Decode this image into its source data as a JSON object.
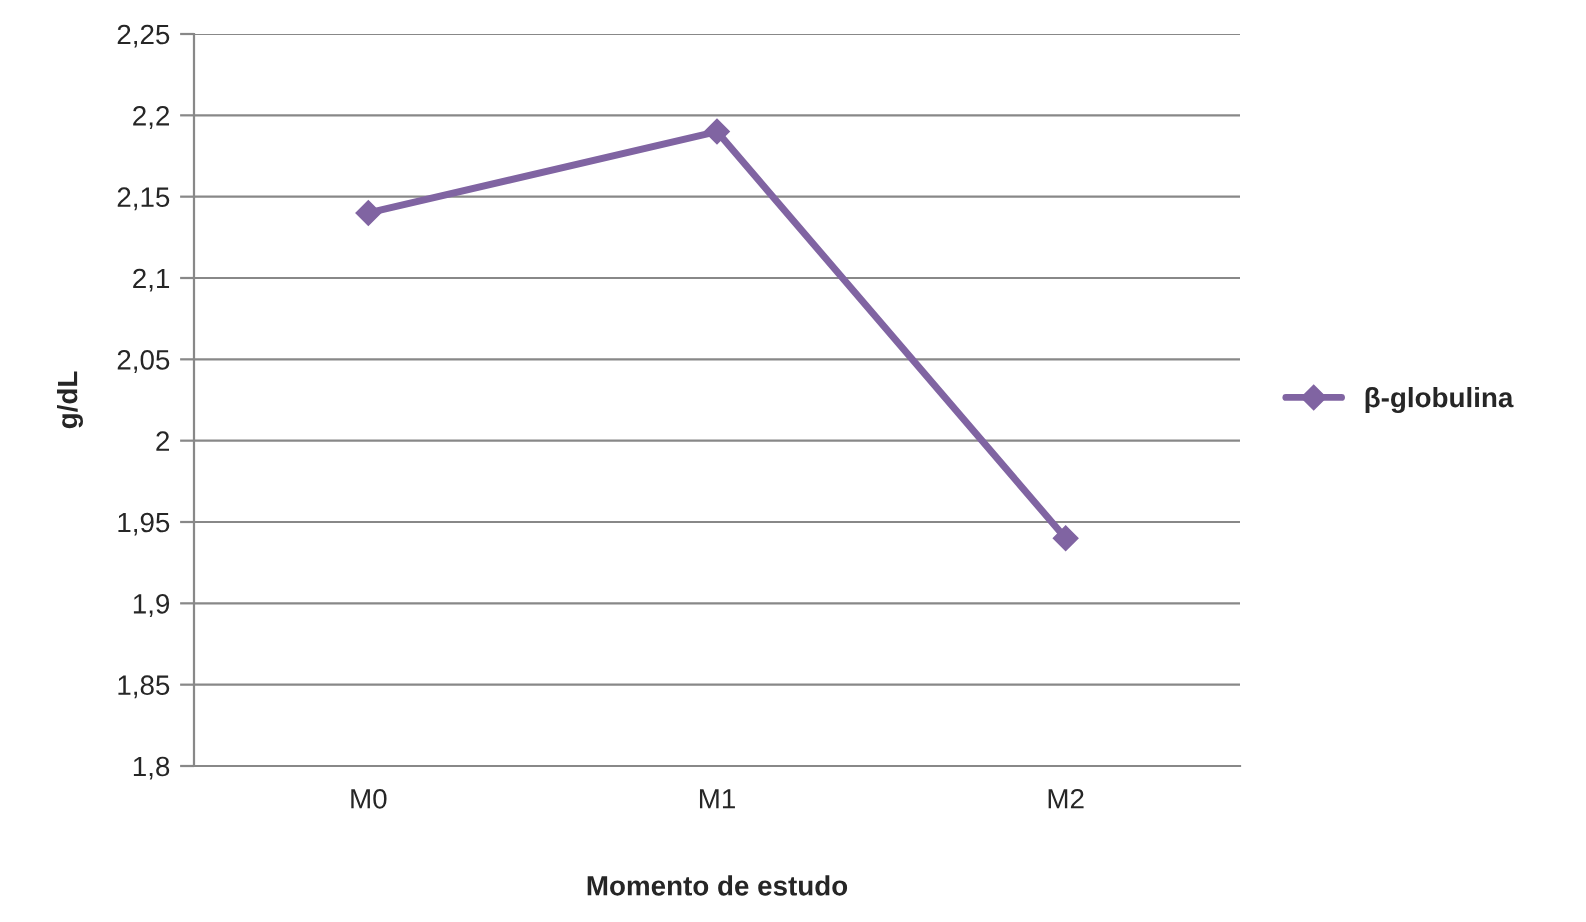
{
  "chart_data": {
    "type": "line",
    "xlabel": "Momento de estudo",
    "ylabel": "g/dL",
    "categories": [
      "M0",
      "M1",
      "M2"
    ],
    "series": [
      {
        "name": "β-globulina",
        "color": "#8064a2",
        "values": [
          2.14,
          2.19,
          1.94
        ]
      }
    ],
    "ylim": [
      1.8,
      2.25
    ],
    "yticks": [
      {
        "value": 1.8,
        "label": "1,8"
      },
      {
        "value": 1.85,
        "label": "1,85"
      },
      {
        "value": 1.9,
        "label": "1,9"
      },
      {
        "value": 1.95,
        "label": "1,95"
      },
      {
        "value": 2.0,
        "label": "2"
      },
      {
        "value": 2.05,
        "label": "2,05"
      },
      {
        "value": 2.1,
        "label": "2,1"
      },
      {
        "value": 2.15,
        "label": "2,15"
      },
      {
        "value": 2.2,
        "label": "2,2"
      },
      {
        "value": 2.25,
        "label": "2,25"
      }
    ],
    "grid": "y",
    "legend": "right",
    "marker": "diamond",
    "line_style": "solid"
  }
}
